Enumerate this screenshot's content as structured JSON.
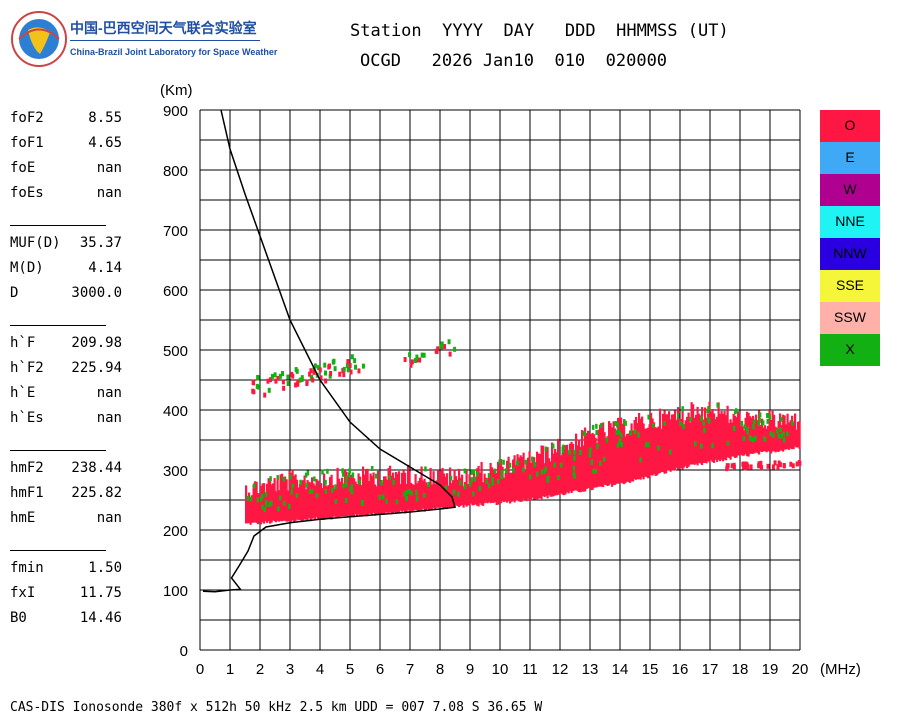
{
  "logo": {
    "cn": "中国-巴西空间天气联合实验室",
    "en": "China-Brazil Joint Laboratory for Space Weather"
  },
  "header": {
    "line1": "Station  YYYY  DAY   DDD  HHMMSS (UT)",
    "line2": "OCGD   2026 Jan10  010  020000"
  },
  "params": {
    "group1": [
      {
        "name": "foF2",
        "value": "8.55"
      },
      {
        "name": "foF1",
        "value": "4.65"
      },
      {
        "name": "foE",
        "value": "nan"
      },
      {
        "name": "foEs",
        "value": "nan"
      }
    ],
    "group2": [
      {
        "name": "MUF(D)",
        "value": "35.37"
      },
      {
        "name": "M(D)",
        "value": "4.14"
      },
      {
        "name": "D",
        "value": "3000.0"
      }
    ],
    "group3": [
      {
        "name": "h`F",
        "value": "209.98"
      },
      {
        "name": "h`F2",
        "value": "225.94"
      },
      {
        "name": "h`E",
        "value": "nan"
      },
      {
        "name": "h`Es",
        "value": "nan"
      }
    ],
    "group4": [
      {
        "name": "hmF2",
        "value": "238.44"
      },
      {
        "name": "hmF1",
        "value": "225.82"
      },
      {
        "name": "hmE",
        "value": "nan"
      }
    ],
    "group5": [
      {
        "name": "fmin",
        "value": "1.50"
      },
      {
        "name": "fxI",
        "value": "11.75"
      },
      {
        "name": "B0",
        "value": "14.46"
      }
    ]
  },
  "legend": [
    {
      "label": "O",
      "color": "#ff1744",
      "text_color": "#000000"
    },
    {
      "label": "E",
      "color": "#3fa9f5",
      "text_color": "#000000"
    },
    {
      "label": "W",
      "color": "#b0008f",
      "text_color": "#000000"
    },
    {
      "label": "NNE",
      "color": "#1ff3f3",
      "text_color": "#000000"
    },
    {
      "label": "NNW",
      "color": "#2a00e0",
      "text_color": "#000000"
    },
    {
      "label": "SSE",
      "color": "#f5f53a",
      "text_color": "#000000"
    },
    {
      "label": "SSW",
      "color": "#ffb0a8",
      "text_color": "#000000"
    },
    {
      "label": "X",
      "color": "#13b013",
      "text_color": "#000000"
    }
  ],
  "footer": "CAS-DIS Ionosonde 380f x 512h 50 kHz 2.5 km UDD = 007 7.08 S 36.65 W",
  "chart_data": {
    "type": "scatter",
    "title": "",
    "xlabel": "(MHz)",
    "ylabel": "(Km)",
    "xlim": [
      0,
      20
    ],
    "ylim": [
      0,
      900
    ],
    "xticks": [
      "0",
      "1",
      "2",
      "3",
      "4",
      "5",
      "6",
      "7",
      "8",
      "9",
      "10",
      "11",
      "12",
      "13",
      "14",
      "15",
      "16",
      "17",
      "18",
      "19",
      "20"
    ],
    "yticks": [
      "0",
      "100",
      "200",
      "300",
      "400",
      "500",
      "600",
      "700",
      "800",
      "900"
    ],
    "grid": true,
    "legend_placement": "right",
    "series": [
      {
        "name": "O",
        "type": "trace_band",
        "color": "#ff1744",
        "band": [
          {
            "x": 1.5,
            "low": 207,
            "high": 285
          },
          {
            "x": 3.0,
            "low": 212,
            "high": 300
          },
          {
            "x": 5.0,
            "low": 220,
            "high": 305
          },
          {
            "x": 7.0,
            "low": 228,
            "high": 310
          },
          {
            "x": 8.5,
            "low": 236,
            "high": 305
          },
          {
            "x": 10.0,
            "low": 242,
            "high": 320
          },
          {
            "x": 11.5,
            "low": 252,
            "high": 345
          },
          {
            "x": 13.0,
            "low": 265,
            "high": 375
          },
          {
            "x": 14.5,
            "low": 280,
            "high": 395
          },
          {
            "x": 16.0,
            "low": 300,
            "high": 410
          },
          {
            "x": 17.0,
            "low": 310,
            "high": 420
          },
          {
            "x": 18.0,
            "low": 320,
            "high": 400
          },
          {
            "x": 20.0,
            "low": 335,
            "high": 400
          }
        ],
        "echo_cluster": [
          {
            "x": 2.0,
            "y": 440
          },
          {
            "x": 2.5,
            "y": 450
          },
          {
            "x": 3.0,
            "y": 455
          },
          {
            "x": 3.5,
            "y": 460
          },
          {
            "x": 4.0,
            "y": 465
          },
          {
            "x": 4.5,
            "y": 470
          },
          {
            "x": 5.0,
            "y": 475
          },
          {
            "x": 7.0,
            "y": 490
          },
          {
            "x": 8.0,
            "y": 500
          }
        ],
        "lower_patch": [
          {
            "x": 17.8,
            "y": 310
          },
          {
            "x": 18.5,
            "y": 312
          },
          {
            "x": 19.5,
            "y": 313
          }
        ]
      },
      {
        "name": "X",
        "type": "scatter_sparse",
        "color": "#13b013"
      },
      {
        "name": "profile",
        "type": "line",
        "color": "#000000",
        "points": [
          {
            "x": 0.1,
            "y": 98
          },
          {
            "x": 0.5,
            "y": 97
          },
          {
            "x": 1.0,
            "y": 100
          },
          {
            "x": 1.35,
            "y": 101
          },
          {
            "x": 1.05,
            "y": 120
          },
          {
            "x": 1.3,
            "y": 140
          },
          {
            "x": 1.6,
            "y": 165
          },
          {
            "x": 1.8,
            "y": 190
          },
          {
            "x": 2.2,
            "y": 205
          },
          {
            "x": 3.0,
            "y": 212
          },
          {
            "x": 4.0,
            "y": 218
          },
          {
            "x": 5.0,
            "y": 222
          },
          {
            "x": 6.0,
            "y": 226
          },
          {
            "x": 7.0,
            "y": 230
          },
          {
            "x": 8.0,
            "y": 235
          },
          {
            "x": 8.5,
            "y": 238
          },
          {
            "x": 8.4,
            "y": 255
          },
          {
            "x": 8.0,
            "y": 275
          },
          {
            "x": 7.0,
            "y": 305
          },
          {
            "x": 6.0,
            "y": 335
          },
          {
            "x": 5.0,
            "y": 380
          },
          {
            "x": 4.0,
            "y": 450
          },
          {
            "x": 3.0,
            "y": 550
          },
          {
            "x": 2.0,
            "y": 690
          },
          {
            "x": 1.5,
            "y": 760
          },
          {
            "x": 1.0,
            "y": 835
          },
          {
            "x": 0.7,
            "y": 900
          }
        ]
      }
    ]
  }
}
